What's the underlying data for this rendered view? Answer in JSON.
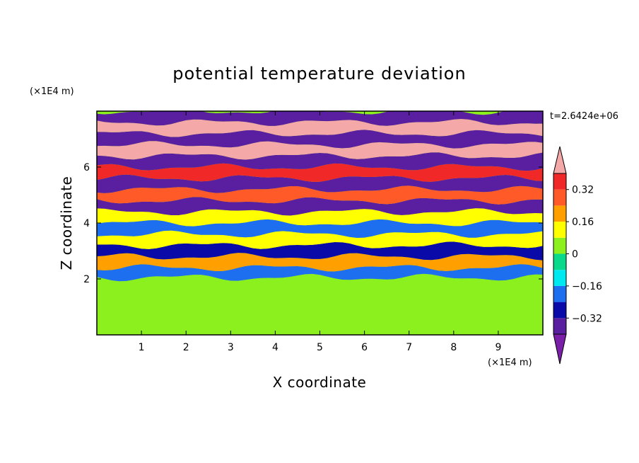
{
  "chart_data": {
    "type": "heatmap",
    "title": "potential temperature deviation",
    "xlabel": "X coordinate",
    "ylabel": "Z coordinate",
    "x_unit": "(×1E4 m)",
    "y_unit": "(×1E4 m)",
    "time_label": "t=2.6424e+06",
    "xlim": [
      0,
      10
    ],
    "ylim": [
      0,
      8
    ],
    "x_ticks": [
      "1",
      "2",
      "3",
      "4",
      "5",
      "6",
      "7",
      "8",
      "9"
    ],
    "y_ticks": [
      "2",
      "4",
      "6"
    ],
    "x_tick_values": [
      1,
      2,
      3,
      4,
      5,
      6,
      7,
      8,
      9
    ],
    "y_tick_values": [
      2,
      4,
      6
    ],
    "colorbar": {
      "levels": [
        -0.4,
        -0.32,
        -0.24,
        -0.16,
        -0.08,
        0,
        0.08,
        0.16,
        0.24,
        0.32,
        0.4
      ],
      "tick_labels": [
        "0.32",
        "0.16",
        "0",
        "−0.16",
        "−0.32"
      ],
      "tick_values": [
        0.32,
        0.16,
        0,
        -0.16,
        -0.32
      ],
      "colors": [
        "#7a1fa8",
        "#5a1fa0",
        "#0a0aa8",
        "#1e6ef0",
        "#00e8f0",
        "#0ad88a",
        "#8cf01e",
        "#ffff00",
        "#ffa000",
        "#ff5a28",
        "#f02828",
        "#f4a8a8"
      ],
      "extend": "both"
    },
    "bands": [
      {
        "z": 0.5,
        "value": 0.0
      },
      {
        "z": 1.2,
        "value": 0.04
      },
      {
        "z": 1.9,
        "value": 0.0
      },
      {
        "z": 2.2,
        "value": -0.2
      },
      {
        "z": 2.6,
        "value": 0.2
      },
      {
        "z": 3.0,
        "value": -0.3
      },
      {
        "z": 3.4,
        "value": 0.1
      },
      {
        "z": 3.8,
        "value": -0.2
      },
      {
        "z": 4.2,
        "value": 0.15
      },
      {
        "z": 4.6,
        "value": -0.35
      },
      {
        "z": 5.0,
        "value": 0.3
      },
      {
        "z": 5.4,
        "value": -0.38
      },
      {
        "z": 5.8,
        "value": 0.38
      },
      {
        "z": 6.2,
        "value": -0.4
      },
      {
        "z": 6.6,
        "value": 0.4
      },
      {
        "z": 7.0,
        "value": -0.4
      },
      {
        "z": 7.4,
        "value": 0.4
      },
      {
        "z": 7.8,
        "value": -0.4
      }
    ]
  }
}
